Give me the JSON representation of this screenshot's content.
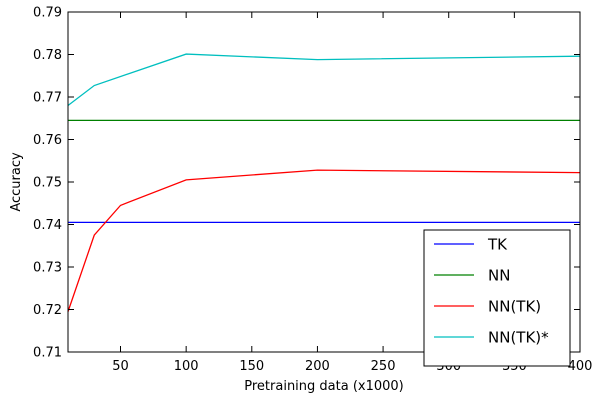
{
  "chart_data": {
    "type": "line",
    "title": "",
    "xlabel": "Pretraining data (x1000)",
    "ylabel": "Accuracy",
    "xlim": [
      10,
      400
    ],
    "ylim": [
      0.71,
      0.79
    ],
    "xticks": [
      50,
      100,
      150,
      200,
      250,
      300,
      350,
      400
    ],
    "yticks": [
      0.71,
      0.72,
      0.73,
      0.74,
      0.75,
      0.76,
      0.77,
      0.78,
      0.79
    ],
    "xtick_labels": [
      "50",
      "100",
      "150",
      "200",
      "250",
      "300",
      "350",
      "400"
    ],
    "ytick_labels": [
      "0.71",
      "0.72",
      "0.73",
      "0.74",
      "0.75",
      "0.76",
      "0.77",
      "0.78",
      "0.79"
    ],
    "grid": false,
    "legend_position": "bottom-right",
    "series": [
      {
        "name": "TK",
        "color": "#0000ff",
        "x": [
          10,
          400
        ],
        "y": [
          0.7405,
          0.7405
        ]
      },
      {
        "name": "NN",
        "color": "#008000",
        "x": [
          10,
          400
        ],
        "y": [
          0.7645,
          0.7645
        ]
      },
      {
        "name": "NN(TK)",
        "color": "#ff0000",
        "x": [
          10,
          30,
          50,
          100,
          200,
          400
        ],
        "y": [
          0.7195,
          0.7375,
          0.7445,
          0.7505,
          0.7528,
          0.7522
        ]
      },
      {
        "name": "NN(TK)*",
        "color": "#00bfbf",
        "x": [
          10,
          30,
          100,
          200,
          400
        ],
        "y": [
          0.768,
          0.7727,
          0.7801,
          0.7788,
          0.7796
        ]
      }
    ]
  }
}
